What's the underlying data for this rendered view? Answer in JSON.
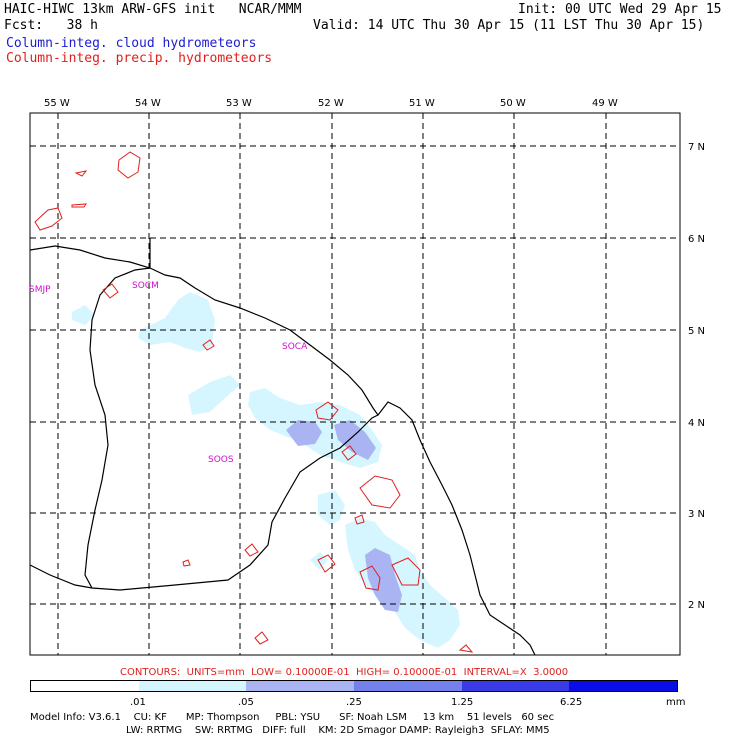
{
  "header": {
    "model_line": "HAIC-HIWC 13km ARW-GFS init   NCAR/MMM",
    "forecast_line": "Fcst:   38 h",
    "init_line": "Init: 00 UTC Wed 29 Apr 15",
    "valid_line": "Valid: 14 UTC Thu 30 Apr 15 (11 LST Thu 30 Apr 15)",
    "legend_cloud": "Column-integ. cloud hydrometeors",
    "legend_precip": "Column-integ. precip. hydrometeors"
  },
  "colors": {
    "cloud_legend": "#1c1cd0",
    "precip_legend": "#e0201c",
    "contour": "#e0201c",
    "station_label": "#d010d0",
    "shade_low": "#d6f6ff",
    "shade_mid": "#aab4f2",
    "shade_high": "#7480ec",
    "shade_top": "#3a3ae6",
    "shade_max": "#0c0ce6"
  },
  "map": {
    "longitude_labels": [
      "55 W",
      "54 W",
      "53 W",
      "52 W",
      "51 W",
      "50 W",
      "49 W"
    ],
    "latitude_labels": [
      "7 N",
      "6 N",
      "5 N",
      "4 N",
      "3 N",
      "2 N"
    ],
    "stations": [
      {
        "label": "SMJP"
      },
      {
        "label": "SOCM"
      },
      {
        "label": "SOCA"
      },
      {
        "label": "SOOS"
      }
    ]
  },
  "contour_info": "CONTOURS:  UNITS=mm  LOW= 0.10000E-01  HIGH= 0.10000E-01  INTERVAL=X  3.0000",
  "colorbar": {
    "ticks": [
      ".01",
      ".05",
      ".25",
      "1.25",
      "6.25"
    ],
    "unit": "mm",
    "segments": [
      "#ffffff",
      "#d6f6ff",
      "#aab4f2",
      "#7480ec",
      "#3a3ae6",
      "#0c0ce6"
    ]
  },
  "model_info": {
    "line1": "Model Info: V3.6.1    CU: KF      MP: Thompson     PBL: YSU      SF: Noah LSM     13 km    51 levels   60 sec",
    "line2": "LW: RRTMG    SW: RRTMG   DIFF: full    KM: 2D Smagor DAMP: Rayleigh3  SFLAY: MM5"
  }
}
